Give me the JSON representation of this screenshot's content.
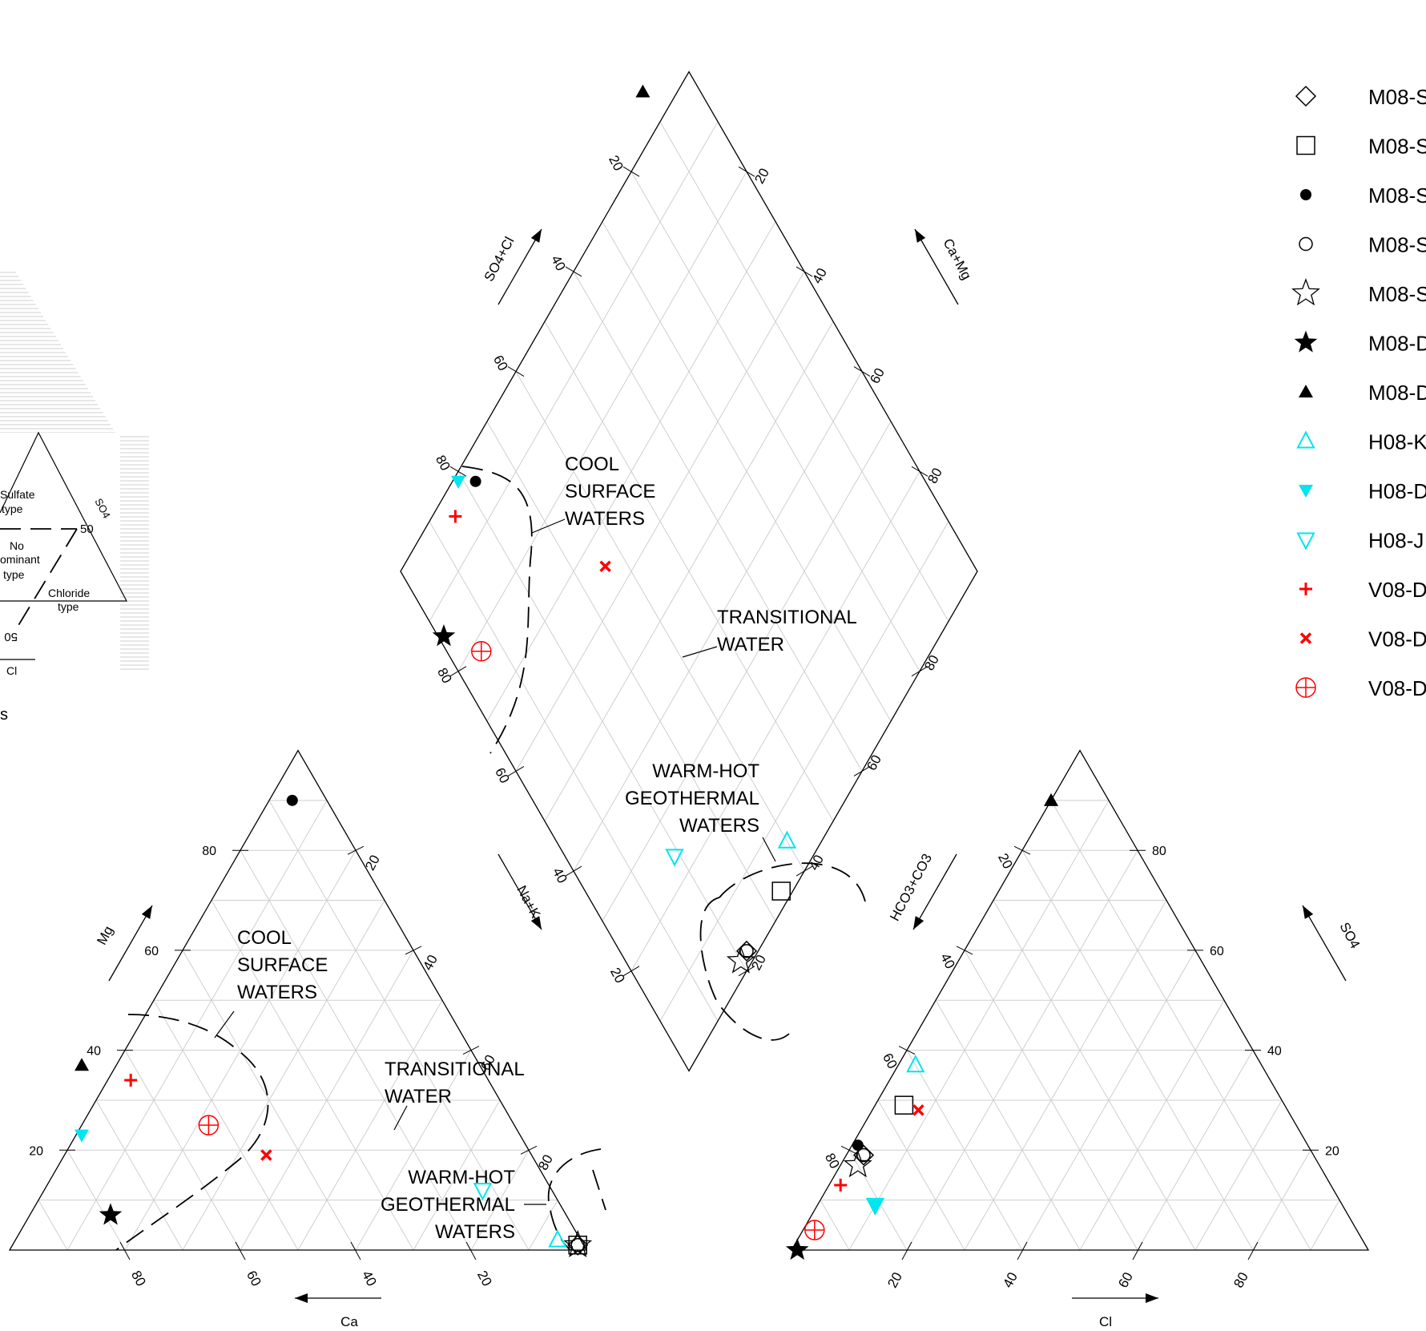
{
  "chart_data": [
    {
      "type": "scatter",
      "panel": "cation-triangle",
      "xlabel": "Ca",
      "ylabel": "Mg",
      "side_label": "Na+K",
      "ticks": [
        "20",
        "40",
        "60",
        "80"
      ],
      "annotations": [
        {
          "lines": [
            "COOL",
            "SURFACE",
            "WATERS"
          ]
        },
        {
          "lines": [
            "TRANSITIONAL",
            "WATER"
          ]
        },
        {
          "lines": [
            "WARM-HOT",
            "GEOTHERMAL",
            "WATERS"
          ]
        }
      ],
      "points": [
        {
          "series": 0,
          "Ca": 1,
          "Mg": 1,
          "NaK": 98
        },
        {
          "series": 1,
          "Ca": 1,
          "Mg": 1,
          "NaK": 98
        },
        {
          "series": 2,
          "Ca": 6,
          "Mg": 90,
          "NaK": 4
        },
        {
          "series": 3,
          "Ca": 1,
          "Mg": 1,
          "NaK": 98
        },
        {
          "series": 4,
          "Ca": 1,
          "Mg": 1,
          "NaK": 98
        },
        {
          "series": 5,
          "Ca": 79,
          "Mg": 7,
          "NaK": 14
        },
        {
          "series": 6,
          "Ca": 69,
          "Mg": 37,
          "NaK": -6
        },
        {
          "series": 7,
          "Ca": 4,
          "Mg": 2,
          "NaK": 94
        },
        {
          "series": 8,
          "Ca": 76,
          "Mg": 23,
          "NaK": 1
        },
        {
          "series": 9,
          "Ca": 12,
          "Mg": 12,
          "NaK": 76
        },
        {
          "series": 10,
          "Ca": 62,
          "Mg": 34,
          "NaK": 4
        },
        {
          "series": 11,
          "Ca": 46,
          "Mg": 19,
          "NaK": 35
        },
        {
          "series": 12,
          "Ca": 53,
          "Mg": 25,
          "NaK": 22
        }
      ]
    },
    {
      "type": "scatter",
      "panel": "anion-triangle",
      "xlabel": "Cl",
      "ylabel": "SO4",
      "side_label": "HCO3+CO3",
      "ticks": [
        "20",
        "40",
        "60",
        "80"
      ],
      "points": [
        {
          "series": 0,
          "Cl": 3,
          "SO4": 19,
          "HCO3": 78
        },
        {
          "series": 1,
          "Cl": 5,
          "SO4": 29,
          "HCO3": 66
        },
        {
          "series": 2,
          "Cl": 1,
          "SO4": 21,
          "HCO3": 78
        },
        {
          "series": 3,
          "Cl": 3,
          "SO4": 19,
          "HCO3": 78
        },
        {
          "series": 4,
          "Cl": 3,
          "SO4": 17,
          "HCO3": 80
        },
        {
          "series": 5,
          "Cl": 1,
          "SO4": 0,
          "HCO3": 99
        },
        {
          "series": 6,
          "Cl": 0,
          "SO4": 90,
          "HCO3": 10
        },
        {
          "series": 7,
          "Cl": 3,
          "SO4": 37,
          "HCO3": 60
        },
        {
          "series": 8,
          "Cl": 10,
          "SO4": 9,
          "HCO3": 81
        },
        {
          "series": 9,
          "Cl": 10,
          "SO4": 9,
          "HCO3": 81
        },
        {
          "series": 10,
          "Cl": 2,
          "SO4": 13,
          "HCO3": 85
        },
        {
          "series": 11,
          "Cl": 8,
          "SO4": 28,
          "HCO3": 64
        },
        {
          "series": 12,
          "Cl": 2,
          "SO4": 4,
          "HCO3": 94
        }
      ]
    },
    {
      "type": "scatter",
      "panel": "diamond",
      "ylabel_left": "SO4+Cl",
      "ylabel_right": "Ca+Mg",
      "ticks": [
        "20",
        "40",
        "60",
        "80"
      ],
      "annotations": [
        {
          "lines": [
            "COOL",
            "SURFACE",
            "WATERS"
          ]
        },
        {
          "lines": [
            "TRANSITIONAL",
            "WATER"
          ]
        },
        {
          "lines": [
            "WARM-HOT",
            "GEOTHERMAL",
            "WATERS"
          ]
        }
      ],
      "points": [
        {
          "series": 0,
          "CaMg": 2,
          "SO4Cl": 22
        },
        {
          "series": 1,
          "CaMg": 2,
          "SO4Cl": 34
        },
        {
          "series": 2,
          "CaMg": 96,
          "SO4Cl": 22
        },
        {
          "series": 3,
          "CaMg": 2,
          "SO4Cl": 22
        },
        {
          "series": 4,
          "CaMg": 2,
          "SO4Cl": 20
        },
        {
          "series": 5,
          "CaMg": 86,
          "SO4Cl": 1
        },
        {
          "series": 6,
          "CaMg": 106,
          "SO4Cl": 90
        },
        {
          "series": 7,
          "CaMg": 6,
          "SO4Cl": 40
        },
        {
          "series": 8,
          "CaMg": 99,
          "SO4Cl": 19
        },
        {
          "series": 9,
          "CaMg": 24,
          "SO4Cl": 19
        },
        {
          "series": 10,
          "CaMg": 96,
          "SO4Cl": 15
        },
        {
          "series": 11,
          "CaMg": 65,
          "SO4Cl": 36
        },
        {
          "series": 12,
          "CaMg": 78,
          "SO4Cl": 6
        }
      ]
    }
  ],
  "legend": {
    "position": "top-right",
    "entries": [
      {
        "label": "M08-S",
        "symbol": "diamond-open",
        "color": "#000000"
      },
      {
        "label": "M08-S",
        "symbol": "square-open",
        "color": "#000000"
      },
      {
        "label": "M08-S",
        "symbol": "circle-filled",
        "color": "#000000"
      },
      {
        "label": "M08-S",
        "symbol": "circle-open",
        "color": "#000000"
      },
      {
        "label": "M08-S",
        "symbol": "star-open",
        "color": "#000000"
      },
      {
        "label": "M08-D",
        "symbol": "star-filled",
        "color": "#000000"
      },
      {
        "label": "M08-D",
        "symbol": "triangle-filled",
        "color": "#000000"
      },
      {
        "label": "H08-K",
        "symbol": "triangle-open",
        "color": "#00e5f0"
      },
      {
        "label": "H08-D",
        "symbol": "triangle-down-filled",
        "color": "#00e5f0"
      },
      {
        "label": "H08-J",
        "symbol": "triangle-down-open",
        "color": "#00e5f0"
      },
      {
        "label": "V08-D",
        "symbol": "plus",
        "color": "#ff0000"
      },
      {
        "label": "V08-D",
        "symbol": "x",
        "color": "#ff0000"
      },
      {
        "label": "V08-D",
        "symbol": "circle-plus",
        "color": "#ff0000"
      }
    ]
  },
  "inset": {
    "labels": [
      "Sulfate",
      "type",
      "No",
      "ominant",
      "type",
      "Chloride",
      "type",
      "SO4",
      "50",
      "50",
      "Cl",
      "s"
    ]
  }
}
